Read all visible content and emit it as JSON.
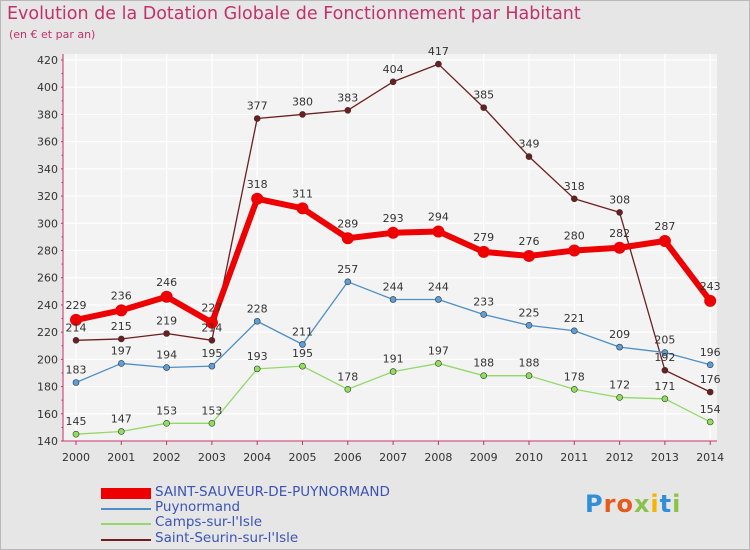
{
  "title": "Evolution de la Dotation Globale de Fonctionnement par Habitant",
  "subtitle": "(en € et par an)",
  "logo_text": "Proxiti",
  "chart_data": {
    "type": "line",
    "title": "Evolution de la Dotation Globale de Fonctionnement par Habitant",
    "subtitle": "(en € et par an)",
    "x": [
      "2000",
      "2001",
      "2002",
      "2003",
      "2004",
      "2005",
      "2006",
      "2007",
      "2008",
      "2009",
      "2010",
      "2011",
      "2012",
      "2013",
      "2014"
    ],
    "ylim": [
      140,
      420
    ],
    "yticks": [
      140,
      160,
      180,
      200,
      220,
      240,
      260,
      280,
      300,
      320,
      340,
      360,
      380,
      400,
      420
    ],
    "grid": true,
    "legend_position": "bottom-left",
    "series": [
      {
        "name": "SAINT-SAUVEUR-DE-PUYNORMAND",
        "color": "#ee0000",
        "values": [
          229,
          236,
          246,
          227,
          318,
          311,
          289,
          293,
          294,
          279,
          276,
          280,
          282,
          287,
          243
        ]
      },
      {
        "name": "Puynormand",
        "color": "#4d8fc6",
        "values": [
          183,
          197,
          194,
          195,
          228,
          211,
          257,
          244,
          244,
          233,
          225,
          221,
          209,
          205,
          196
        ]
      },
      {
        "name": "Camps-sur-l'Isle",
        "color": "#92d96a",
        "values": [
          145,
          147,
          153,
          153,
          193,
          195,
          178,
          191,
          197,
          188,
          188,
          178,
          172,
          171,
          154
        ]
      },
      {
        "name": "Saint-Seurin-sur-l'Isle",
        "color": "#6e1e1e",
        "values": [
          214,
          215,
          219,
          214,
          377,
          380,
          383,
          404,
          417,
          385,
          349,
          318,
          308,
          192,
          176
        ]
      }
    ]
  }
}
